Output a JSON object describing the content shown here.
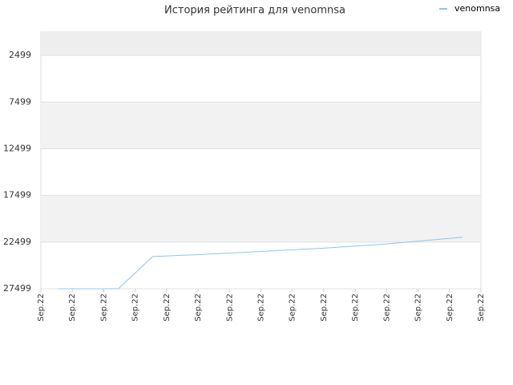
{
  "chart_data": {
    "type": "line",
    "title": "История рейтинга для venomnsa",
    "x": [
      0.55,
      2.47,
      3.55,
      5,
      7,
      9,
      11,
      13.42
    ],
    "series": [
      {
        "name": "venomnsa",
        "color": "#8cc6f0",
        "values": [
          27499,
          27499,
          24050,
          23850,
          23500,
          23150,
          22700,
          21980
        ]
      }
    ],
    "xlim": [
      0,
      14
    ],
    "xticks": [
      {
        "value": 0,
        "label": "Sep.22"
      },
      {
        "value": 1,
        "label": "Sep.22"
      },
      {
        "value": 2,
        "label": "Sep.22"
      },
      {
        "value": 3,
        "label": "Sep.22"
      },
      {
        "value": 4,
        "label": "Sep.22"
      },
      {
        "value": 5,
        "label": "Sep.22"
      },
      {
        "value": 6,
        "label": "Sep.22"
      },
      {
        "value": 7,
        "label": "Sep.22"
      },
      {
        "value": 8,
        "label": "Sep.22"
      },
      {
        "value": 9,
        "label": "Sep.22"
      },
      {
        "value": 10,
        "label": "Sep.22"
      },
      {
        "value": 11,
        "label": "Sep.22"
      },
      {
        "value": 12,
        "label": "Sep.22"
      },
      {
        "value": 13,
        "label": "Sep.22"
      },
      {
        "value": 14,
        "label": "Sep.22"
      }
    ],
    "ylim": [
      27499,
      -1
    ],
    "yticks": [
      2499,
      7499,
      12499,
      17499,
      22499,
      27499
    ],
    "grid": true,
    "legend": "top-right"
  }
}
